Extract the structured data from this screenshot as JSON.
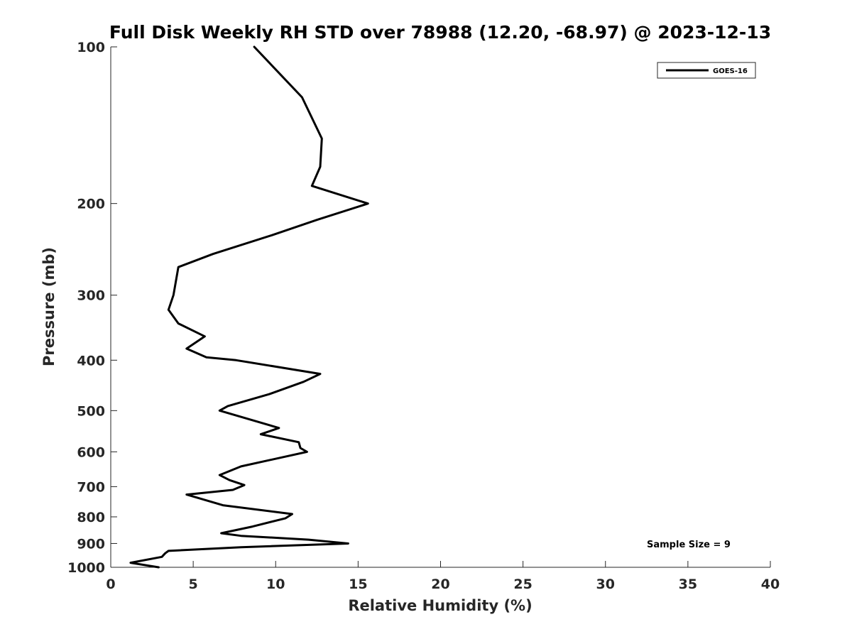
{
  "chart_data": {
    "type": "line",
    "title": "Full Disk Weekly RH STD over 78988 (12.20, -68.97) @ 2023-12-13",
    "xlabel": "Relative Humidity (%)",
    "ylabel": "Pressure (mb)",
    "xlim": [
      0,
      40
    ],
    "ylim": [
      100,
      1000
    ],
    "y_scale": "log",
    "y_reversed": true,
    "x_ticks": [
      0,
      5,
      10,
      15,
      20,
      25,
      30,
      35,
      40
    ],
    "y_ticks": [
      100,
      200,
      300,
      400,
      500,
      600,
      700,
      800,
      900,
      1000
    ],
    "grid": false,
    "legend_position": "top-right",
    "series": [
      {
        "name": "GOES-16",
        "color": "#000000",
        "points": [
          [
            8.7,
            100
          ],
          [
            11.6,
            125
          ],
          [
            12.8,
            150
          ],
          [
            12.7,
            170
          ],
          [
            12.2,
            185
          ],
          [
            15.6,
            200
          ],
          [
            12.5,
            215
          ],
          [
            9.8,
            230
          ],
          [
            6.2,
            250
          ],
          [
            4.1,
            265
          ],
          [
            3.8,
            300
          ],
          [
            3.5,
            320
          ],
          [
            4.1,
            340
          ],
          [
            5.7,
            360
          ],
          [
            4.6,
            380
          ],
          [
            5.8,
            395
          ],
          [
            7.6,
            400
          ],
          [
            12.7,
            425
          ],
          [
            11.7,
            440
          ],
          [
            9.6,
            465
          ],
          [
            7.1,
            490
          ],
          [
            6.6,
            500
          ],
          [
            10.2,
            540
          ],
          [
            9.1,
            555
          ],
          [
            11.4,
            575
          ],
          [
            11.5,
            590
          ],
          [
            11.9,
            600
          ],
          [
            7.9,
            640
          ],
          [
            6.6,
            665
          ],
          [
            7.2,
            680
          ],
          [
            8.1,
            695
          ],
          [
            7.4,
            710
          ],
          [
            4.6,
            725
          ],
          [
            6.8,
            760
          ],
          [
            11.0,
            790
          ],
          [
            10.6,
            805
          ],
          [
            8.6,
            835
          ],
          [
            6.7,
            860
          ],
          [
            7.9,
            870
          ],
          [
            12.0,
            885
          ],
          [
            14.4,
            900
          ],
          [
            7.9,
            915
          ],
          [
            3.5,
            930
          ],
          [
            3.3,
            940
          ],
          [
            3.1,
            955
          ],
          [
            1.2,
            980
          ],
          [
            2.9,
            1000
          ]
        ]
      }
    ],
    "annotations": [
      {
        "text": "Sample Size = 9"
      }
    ]
  }
}
